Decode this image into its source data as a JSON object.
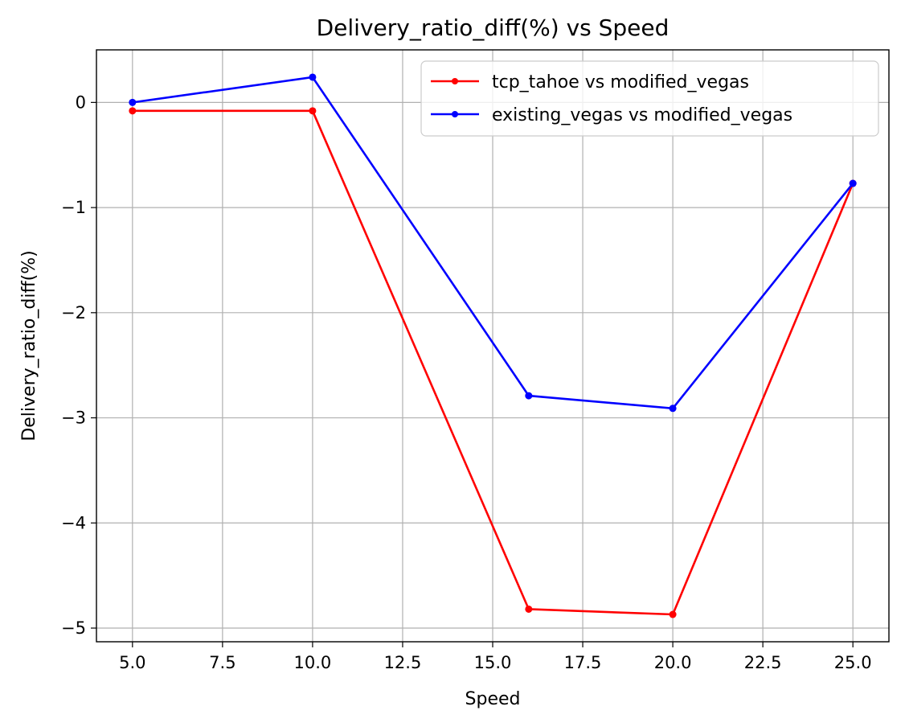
{
  "chart_data": {
    "type": "line",
    "title": "Delivery_ratio_diff(%) vs Speed",
    "xlabel": "Speed",
    "ylabel": "Delivery_ratio_diff(%)",
    "xlim": [
      4.0,
      26.0
    ],
    "ylim": [
      -5.13,
      0.5
    ],
    "xticks": [
      5.0,
      7.5,
      10.0,
      12.5,
      15.0,
      17.5,
      20.0,
      22.5,
      25.0
    ],
    "xtick_labels": [
      "5.0",
      "7.5",
      "10.0",
      "12.5",
      "15.0",
      "17.5",
      "20.0",
      "22.5",
      "25.0"
    ],
    "yticks": [
      0,
      -1,
      -2,
      -3,
      -4,
      -5
    ],
    "ytick_labels": [
      "0",
      "−1",
      "−2",
      "−3",
      "−4",
      "−5"
    ],
    "grid": true,
    "legend_position": "top-right",
    "x": [
      5,
      10,
      16,
      20,
      25
    ],
    "series": [
      {
        "name": "tcp_tahoe vs modified_vegas",
        "color": "#ff0000",
        "values": [
          -0.08,
          -0.08,
          -4.82,
          -4.87,
          -0.77
        ]
      },
      {
        "name": "existing_vegas vs modified_vegas",
        "color": "#0000ff",
        "values": [
          0.0,
          0.24,
          -2.79,
          -2.91,
          -0.77
        ]
      }
    ]
  }
}
